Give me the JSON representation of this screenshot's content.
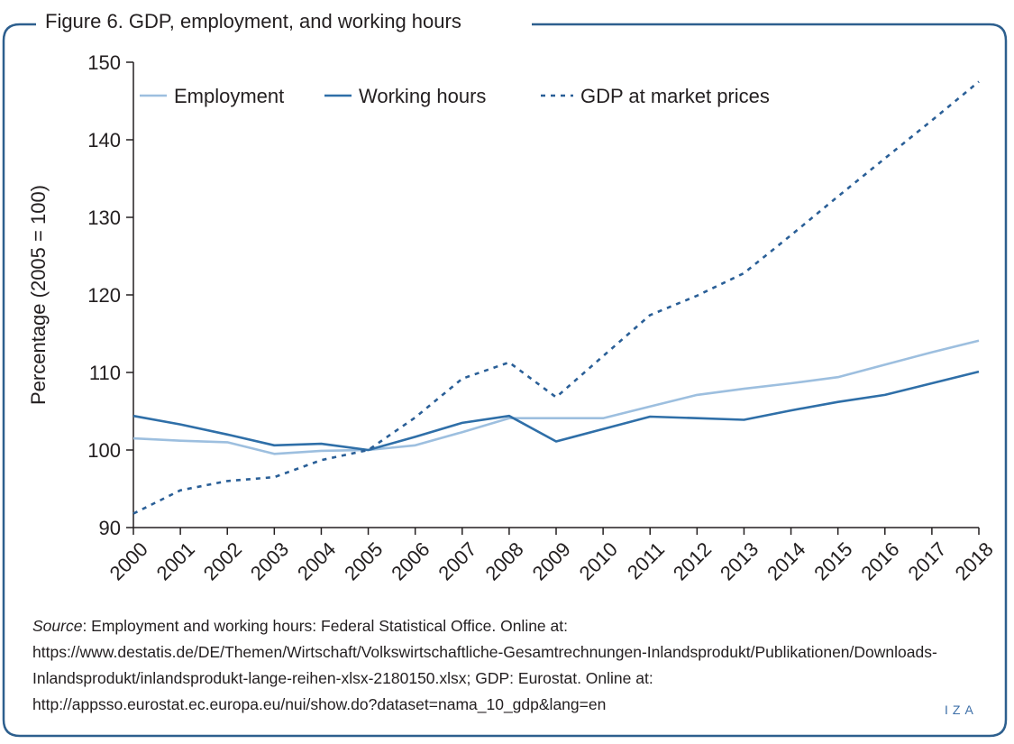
{
  "figure_title": "Figure 6. GDP, employment, and working hours",
  "source": {
    "label": "Source",
    "text": ": Employment and working hours: Federal Statistical Office. Online at: https://www.destatis.de/DE/Themen/Wirtschaft/Volkswirtschaftliche-Gesamtrechnungen-Inlandsprodukt/Publikationen/Downloads-Inlandsprodukt/inlandsprodukt-lange-reihen-xlsx-2180150.xlsx; GDP: Eurostat. Online at: http://appsso.eurostat.ec.europa.eu/nui/show.do?dataset=nama_10_gdp&lang=en"
  },
  "logo": "IZA",
  "colors": {
    "employment": "#9dbfdf",
    "working_hours": "#2f6fa8",
    "gdp": "#2a5f97",
    "frame": "#2d5f8e"
  },
  "chart_data": {
    "type": "line",
    "title": "",
    "xlabel": "",
    "ylabel": "Percentage (2005 = 100)",
    "ylim": [
      90,
      150
    ],
    "yticks": [
      90,
      100,
      110,
      120,
      130,
      140,
      150
    ],
    "grid": false,
    "legend_position": "top",
    "x": [
      "2000",
      "2001",
      "2002",
      "2003",
      "2004",
      "2005",
      "2006",
      "2007",
      "2008",
      "2009",
      "2010",
      "2011",
      "2012",
      "2013",
      "2014",
      "2015",
      "2016",
      "2017",
      "2018"
    ],
    "series": [
      {
        "name": "Employment",
        "style": "solid",
        "values": [
          101.5,
          101.2,
          101.0,
          99.5,
          99.9,
          100.0,
          100.6,
          102.3,
          104.1,
          104.1,
          104.1,
          105.6,
          107.1,
          107.9,
          108.6,
          109.4,
          111.0,
          112.6,
          114.1
        ]
      },
      {
        "name": "Working hours",
        "style": "solid",
        "values": [
          104.4,
          103.3,
          102.0,
          100.6,
          100.8,
          100.0,
          101.7,
          103.5,
          104.4,
          101.1,
          102.7,
          104.3,
          104.1,
          103.9,
          105.1,
          106.2,
          107.1,
          108.6,
          110.1
        ]
      },
      {
        "name": "GDP at market prices",
        "style": "dotted",
        "values": [
          91.8,
          94.8,
          96.0,
          96.5,
          98.7,
          100.0,
          104.2,
          109.2,
          111.3,
          106.8,
          112.1,
          117.4,
          119.9,
          122.8,
          127.7,
          132.7,
          137.6,
          142.5,
          147.5
        ]
      }
    ]
  }
}
